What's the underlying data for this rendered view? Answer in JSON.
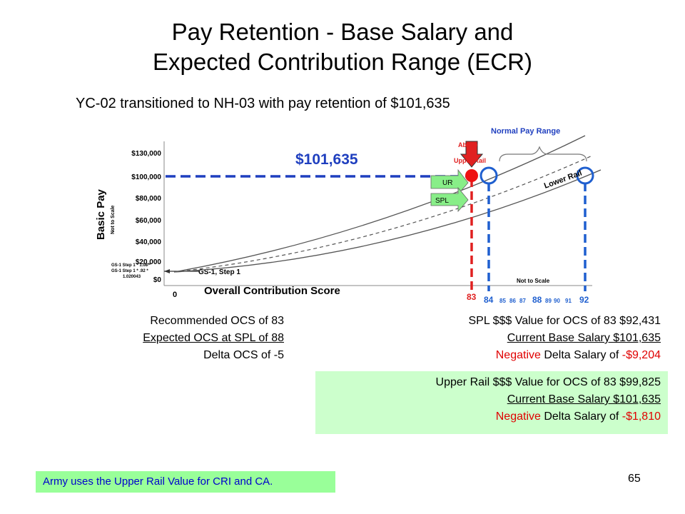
{
  "title_line1": "Pay Retention - Base Salary and",
  "title_line2": "Expected Contribution Range (ECR)",
  "subtitle": "YC-02 transitioned to NH-03 with pay retention of $101,635",
  "chart_data": {
    "type": "line",
    "ylabel": "Basic Pay",
    "ylabel_note": "Not to Scale",
    "xlabel": "Overall Contribution Score",
    "y_ticks": [
      "$130,000",
      "$100,000",
      "$80,000",
      "$60,000",
      "$40,000",
      "$20,000",
      "$0"
    ],
    "x_origin_label": "0",
    "x_ticks": [
      "83",
      "84",
      "85",
      "86",
      "87",
      "88",
      "89",
      "90",
      "91",
      "92"
    ],
    "x_not_to_scale": "Not to Scale",
    "salary_label": "$101,635",
    "salary_value": 101635,
    "normal_pay_range_label": "Normal Pay Range",
    "above_upper_rail_label_1": "Above",
    "above_upper_rail_label_2": "Upper Rail",
    "lower_rail_label": "Lower Rail",
    "gs_step_label": "GS-1, Step 1",
    "gs_formula_1": "GS-1 Step 1 * 1.08 *",
    "gs_formula_2": "GS-1 Step 1 * .92 *",
    "gs_formula_3": "1.020043",
    "ur_label": "UR",
    "spl_label": "SPL",
    "markers": {
      "recommended_ocs": 83,
      "normal_range_start": 84,
      "normal_range_end": 92
    },
    "colors": {
      "salary_line": "#1f3fbf",
      "ocs_83_line": "#e02020",
      "curves": "#555555",
      "markers": "#1f5fcf",
      "arrow_green": "#88ee88",
      "point_red": "#ee1111"
    }
  },
  "ocs": {
    "recommended": "Recommended OCS of 83",
    "expected": "Expected OCS at SPL of 88",
    "delta": "Delta OCS of -5"
  },
  "spl": {
    "value": "SPL $$$ Value for OCS of 83 $92,431",
    "current": "Current Base Salary $101,635",
    "neg_word": "Negative",
    "delta_rest": " Delta Salary of ",
    "delta_value": "-$9,204"
  },
  "upper": {
    "value": "Upper Rail $$$ Value for OCS of 83 $99,825",
    "current": "Current Base Salary $101,635",
    "neg_word": "Negative",
    "delta_rest": " Delta Salary of ",
    "delta_value": "-$1,810"
  },
  "army_note": "Army uses the Upper Rail Value  for CRI and CA.",
  "page_number": "65"
}
